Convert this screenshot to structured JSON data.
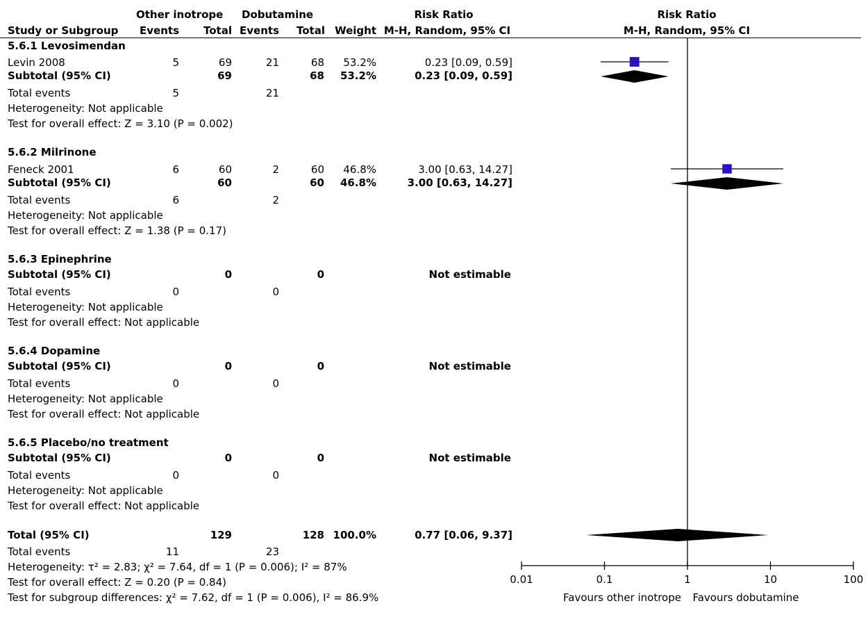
{
  "header": {
    "group1": "Other inotrope",
    "group2": "Dobutamine",
    "rr_title": "Risk Ratio",
    "study_col": "Study or Subgroup",
    "events1": "Events",
    "total1": "Total",
    "events2": "Events",
    "total2": "Total",
    "weight": "Weight",
    "rr_method": "M-H, Random, 95% CI",
    "plot_title": "Risk Ratio",
    "plot_method": "M-H, Random, 95% CI"
  },
  "subgroups": [
    {
      "title": "5.6.1 Levosimendan",
      "study": {
        "name": "Levin 2008",
        "e1": "5",
        "t1": "69",
        "e2": "21",
        "t2": "68",
        "weight": "53.2%",
        "ci": "0.23 [0.09, 0.59]"
      },
      "subtotal": {
        "label": "Subtotal (95% CI)",
        "t1": "69",
        "t2": "68",
        "weight": "53.2%",
        "ci": "0.23 [0.09, 0.59]"
      },
      "total_events": {
        "label": "Total events",
        "e1": "5",
        "e2": "21"
      },
      "heterogeneity": "Heterogeneity: Not applicable",
      "overall_effect": "Test for overall effect: Z = 3.10 (P = 0.002)"
    },
    {
      "title": "5.6.2 Milrinone",
      "study": {
        "name": "Feneck 2001",
        "e1": "6",
        "t1": "60",
        "e2": "2",
        "t2": "60",
        "weight": "46.8%",
        "ci": "3.00 [0.63, 14.27]"
      },
      "subtotal": {
        "label": "Subtotal (95% CI)",
        "t1": "60",
        "t2": "60",
        "weight": "46.8%",
        "ci": "3.00 [0.63, 14.27]"
      },
      "total_events": {
        "label": "Total events",
        "e1": "6",
        "e2": "2"
      },
      "heterogeneity": "Heterogeneity: Not applicable",
      "overall_effect": "Test for overall effect: Z = 1.38 (P = 0.17)"
    },
    {
      "title": "5.6.3 Epinephrine",
      "subtotal": {
        "label": "Subtotal (95% CI)",
        "t1": "0",
        "t2": "0",
        "ci": "Not estimable"
      },
      "total_events": {
        "label": "Total events",
        "e1": "0",
        "e2": "0"
      },
      "heterogeneity": "Heterogeneity: Not applicable",
      "overall_effect": "Test for overall effect: Not applicable"
    },
    {
      "title": "5.6.4 Dopamine",
      "subtotal": {
        "label": "Subtotal (95% CI)",
        "t1": "0",
        "t2": "0",
        "ci": "Not estimable"
      },
      "total_events": {
        "label": "Total events",
        "e1": "0",
        "e2": "0"
      },
      "heterogeneity": "Heterogeneity: Not applicable",
      "overall_effect": "Test for overall effect: Not applicable"
    },
    {
      "title": "5.6.5 Placebo/no treatment",
      "subtotal": {
        "label": "Subtotal (95% CI)",
        "t1": "0",
        "t2": "0",
        "ci": "Not estimable"
      },
      "total_events": {
        "label": "Total events",
        "e1": "0",
        "e2": "0"
      },
      "heterogeneity": "Heterogeneity: Not applicable",
      "overall_effect": "Test for overall effect: Not applicable"
    }
  ],
  "total": {
    "label": "Total (95% CI)",
    "t1": "129",
    "t2": "128",
    "weight": "100.0%",
    "ci": "0.77 [0.06, 9.37]",
    "events_label": "Total events",
    "e1": "11",
    "e2": "23",
    "heterogeneity": "Heterogeneity: τ² = 2.83; χ² = 7.64, df = 1 (P = 0.006); I² = 87%",
    "overall_effect": "Test for overall effect: Z = 0.20 (P = 0.84)",
    "subgroup_diff": "Test for subgroup differences: χ² = 7.62, df = 1 (P = 0.006), I² = 86.9%"
  },
  "chart_data": {
    "type": "forest",
    "scale": "log",
    "xlim": [
      0.01,
      100
    ],
    "ticks": [
      0.01,
      0.1,
      1,
      10,
      100
    ],
    "tick_labels": [
      "0.01",
      "0.1",
      "1",
      "10",
      "100"
    ],
    "null_value": 1,
    "favours_left": "Favours other inotrope",
    "favours_right": "Favours dobutamine",
    "marker_color": "#2a12c0",
    "studies": [
      {
        "name": "Levin 2008",
        "rr": 0.23,
        "lo": 0.09,
        "hi": 0.59,
        "weight": 53.2
      },
      {
        "name": "Feneck 2001",
        "rr": 3.0,
        "lo": 0.63,
        "hi": 14.27,
        "weight": 46.8
      }
    ],
    "pooled": [
      {
        "name": "Subtotal 5.6.1",
        "rr": 0.23,
        "lo": 0.09,
        "hi": 0.59
      },
      {
        "name": "Subtotal 5.6.2",
        "rr": 3.0,
        "lo": 0.63,
        "hi": 14.27
      },
      {
        "name": "Total",
        "rr": 0.77,
        "lo": 0.06,
        "hi": 9.37
      }
    ]
  }
}
